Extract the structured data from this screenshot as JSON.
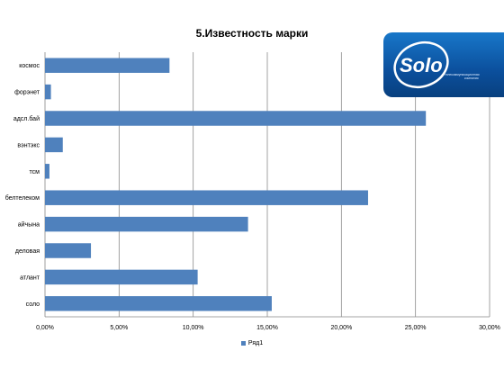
{
  "chart_data": {
    "type": "bar",
    "orientation": "horizontal",
    "title": "5.Известность марки",
    "categories": [
      "космос",
      "форэнет",
      "адсл.бай",
      "вэнтэкс",
      "тсм",
      "белтелеком",
      "айчына",
      "деловая",
      "атлант",
      "соло"
    ],
    "series": [
      {
        "name": "Ряд1",
        "values": [
          8.4,
          0.4,
          25.7,
          1.2,
          0.3,
          21.8,
          13.7,
          3.1,
          10.3,
          15.3
        ],
        "color": "#4f81bd"
      }
    ],
    "xlim": [
      0,
      30
    ],
    "x_ticks": [
      "0,00%",
      "5,00%",
      "10,00%",
      "15,00%",
      "20,00%",
      "25,00%",
      "30,00%"
    ],
    "grid": "vertical",
    "legend": "bottom"
  },
  "logo": {
    "text": "Solo",
    "tagline": "телекоммуникационная компания",
    "bg_color": "#0b5aa8"
  }
}
